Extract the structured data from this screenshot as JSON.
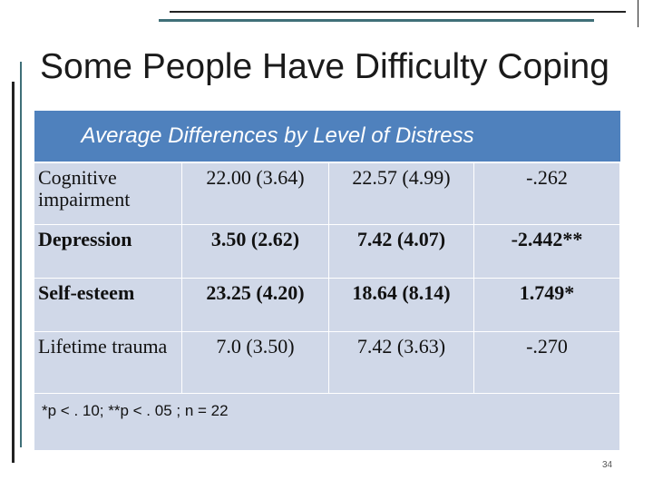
{
  "title": "Some People Have Difficulty Coping",
  "table": {
    "caption": "Average Differences by Level of Distress",
    "rows": [
      [
        "Cognitive impairment",
        "22.00 (3.64)",
        "22.57 (4.99)",
        "-.262"
      ],
      [
        "Depression",
        "3.50 (2.62)",
        "7.42 (4.07)",
        "-2.442**"
      ],
      [
        "Self-esteem",
        "23.25 (4.20)",
        "18.64 (8.14)",
        "1.749*"
      ],
      [
        "Lifetime trauma",
        "7.0 (3.50)",
        "7.42 (3.63)",
        "-.270"
      ]
    ],
    "note": "*p < . 10; **p < . 05 ; n = 22"
  },
  "page_number": "34"
}
